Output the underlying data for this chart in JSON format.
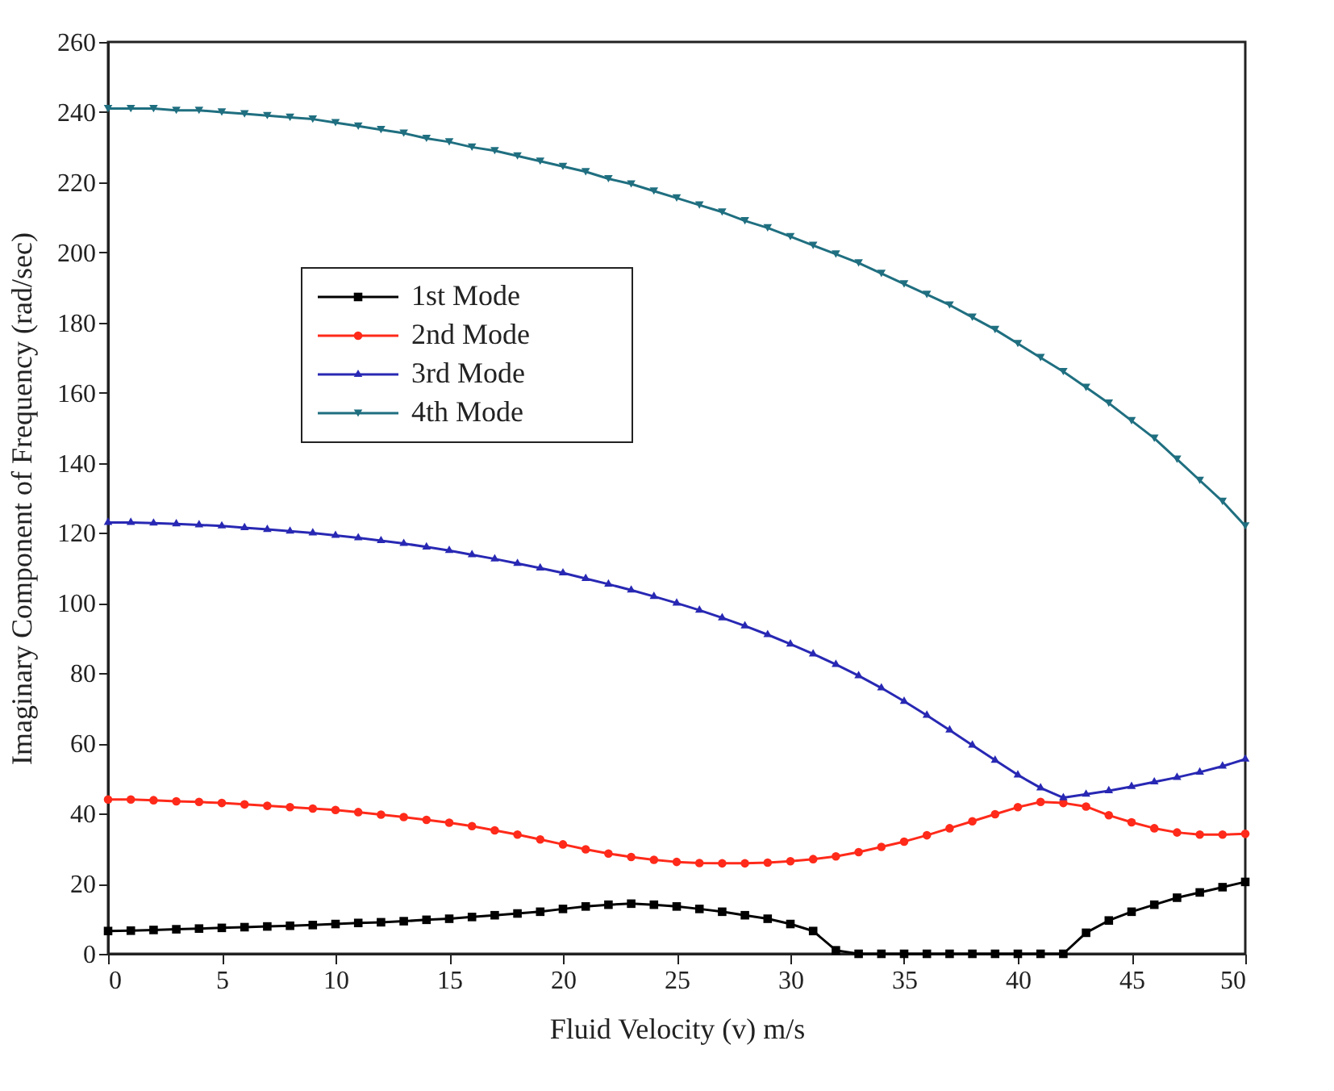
{
  "chart_data": {
    "type": "line",
    "xlabel": "Fluid Velocity (v) m/s",
    "ylabel": "Imaginary Component of  Frequency (rad/sec)",
    "x": [
      0,
      1,
      2,
      3,
      4,
      5,
      6,
      7,
      8,
      9,
      10,
      11,
      12,
      13,
      14,
      15,
      16,
      17,
      18,
      19,
      20,
      21,
      22,
      23,
      24,
      25,
      26,
      27,
      28,
      29,
      30,
      31,
      32,
      33,
      34,
      35,
      36,
      37,
      38,
      39,
      40,
      41,
      42,
      43,
      44,
      45,
      46,
      47,
      48,
      49,
      50
    ],
    "series": [
      {
        "name": "1st Mode",
        "color": "#000000",
        "marker": "square",
        "values": [
          6.5,
          6.6,
          6.8,
          7,
          7.2,
          7.4,
          7.6,
          7.8,
          8,
          8.2,
          8.5,
          8.8,
          9,
          9.3,
          9.7,
          10,
          10.5,
          11,
          11.5,
          12,
          12.8,
          13.5,
          14,
          14.3,
          14,
          13.5,
          12.8,
          12,
          11,
          10,
          8.5,
          6.5,
          1,
          0,
          0,
          0,
          0,
          0,
          0,
          0,
          0,
          0,
          0,
          6,
          9.5,
          12,
          14,
          16,
          17.5,
          19,
          20.5
        ]
      },
      {
        "name": "2nd Mode",
        "color": "#ff2a1a",
        "marker": "circle",
        "values": [
          44,
          44,
          43.8,
          43.5,
          43.3,
          43,
          42.6,
          42.2,
          41.8,
          41.4,
          41,
          40.4,
          39.7,
          39,
          38.2,
          37.4,
          36.4,
          35.2,
          34,
          32.6,
          31.2,
          29.8,
          28.6,
          27.6,
          26.8,
          26.2,
          25.9,
          25.8,
          25.8,
          26,
          26.4,
          27,
          27.8,
          29,
          30.5,
          32,
          33.8,
          35.8,
          37.8,
          39.8,
          41.8,
          43.3,
          43,
          42,
          39.5,
          37.5,
          35.8,
          34.6,
          34,
          34,
          34.2
        ]
      },
      {
        "name": "3rd Mode",
        "color": "#2828b4",
        "marker": "triangle",
        "values": [
          123,
          123,
          122.8,
          122.6,
          122.3,
          122,
          121.5,
          121,
          120.5,
          120,
          119.3,
          118.6,
          117.8,
          117,
          116,
          115,
          113.8,
          112.6,
          111.3,
          110,
          108.6,
          107,
          105.4,
          103.7,
          101.9,
          100,
          98,
          95.8,
          93.5,
          91,
          88.3,
          85.5,
          82.5,
          79.3,
          75.8,
          72,
          68,
          63.8,
          59.5,
          55.2,
          51,
          47.3,
          44.5,
          45.5,
          46.5,
          47.7,
          49,
          50.3,
          51.8,
          53.5,
          55.5
        ]
      },
      {
        "name": "4th Mode",
        "color": "#1f6f80",
        "marker": "triangle-down",
        "values": [
          241,
          241,
          241,
          240.5,
          240.5,
          240,
          239.5,
          239,
          238.5,
          238,
          237,
          236,
          235,
          234,
          232.5,
          231.5,
          230,
          229,
          227.5,
          226,
          224.5,
          223,
          221,
          219.5,
          217.5,
          215.5,
          213.5,
          211.5,
          209,
          207,
          204.5,
          202,
          199.5,
          197,
          194,
          191,
          188,
          185,
          181.5,
          178,
          174,
          170,
          166,
          161.5,
          157,
          152,
          147,
          141,
          135,
          129,
          122
        ]
      }
    ],
    "xlim": [
      0,
      50
    ],
    "xticks": [
      0,
      5,
      10,
      15,
      20,
      25,
      30,
      35,
      40,
      45,
      50
    ],
    "ylim": [
      0,
      260
    ],
    "yticks": [
      0,
      20,
      40,
      60,
      80,
      100,
      120,
      140,
      160,
      180,
      200,
      220,
      240,
      260
    ],
    "grid": false,
    "legend": "top left",
    "line_style": "solid"
  }
}
